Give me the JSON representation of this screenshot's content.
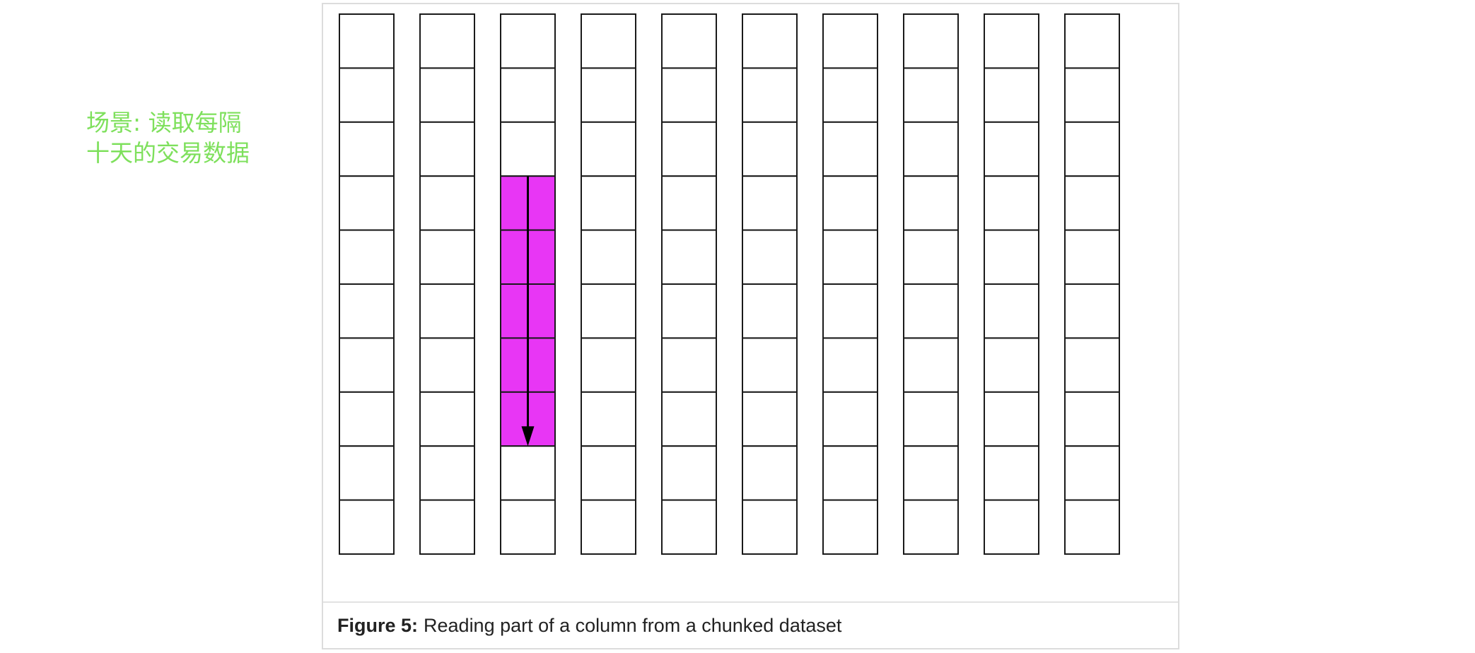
{
  "side_note": {
    "line1": "场景: 读取每隔",
    "line2": "十天的交易数据"
  },
  "figure": {
    "caption_label": "Figure 5:",
    "caption_text": "Reading part of a column from a chunked dataset"
  },
  "grid": {
    "columns": 10,
    "rows": 10,
    "highlight": {
      "column_index": 2,
      "row_start": 3,
      "row_end": 7
    },
    "colors": {
      "highlight": "#e836f5",
      "line": "#1a1a1a",
      "cell": "#ffffff",
      "arrow": "#000000"
    }
  }
}
